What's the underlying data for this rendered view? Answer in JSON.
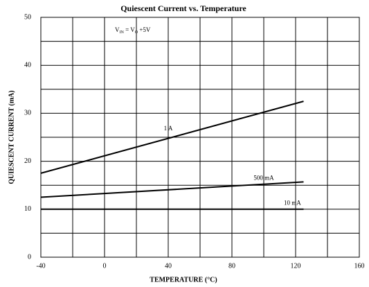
{
  "chart_data": {
    "type": "line",
    "title": "Quiescent Current vs. Temperature",
    "xlabel": "TEMPERATURE  (°C)",
    "ylabel": "QUIESCENT CURRENT (mA)",
    "annotation": [
      "V",
      "IN",
      " = V",
      "O",
      " +5V"
    ],
    "x": [
      -40,
      125
    ],
    "series": [
      {
        "name": "1 A",
        "color": "#000000",
        "values": [
          17.5,
          32.5
        ]
      },
      {
        "name": "500 mA",
        "color": "#000000",
        "values": [
          12.5,
          15.7
        ]
      },
      {
        "name": "10 mA",
        "color": "#000000",
        "values": [
          10,
          10
        ]
      }
    ],
    "xlim": [
      -40,
      160
    ],
    "ylim": [
      0,
      50
    ],
    "xticks": [
      -40,
      0,
      40,
      80,
      120,
      160
    ],
    "yticks": [
      0,
      10,
      20,
      30,
      40,
      50
    ],
    "xgrid": [
      -20,
      20,
      60,
      100,
      140
    ],
    "ygrid": [
      5,
      15,
      25,
      35,
      45
    ],
    "grid": true
  }
}
